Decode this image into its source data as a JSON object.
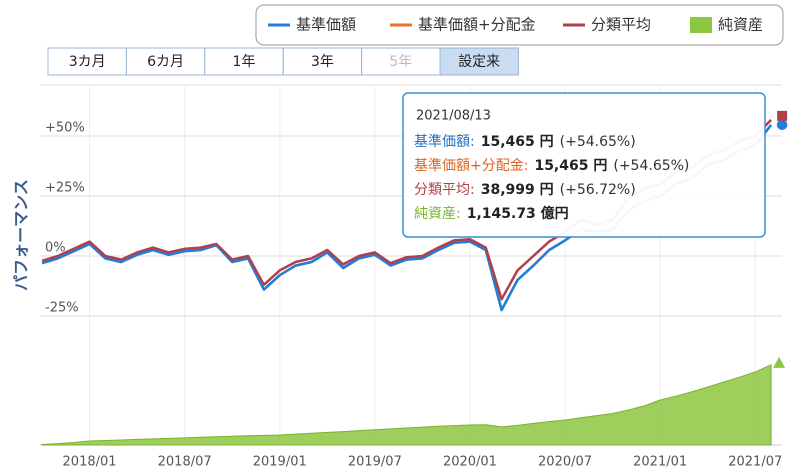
{
  "chart_data": {
    "type": "line",
    "y_label": "パフォーマンス",
    "range_buttons": [
      "3カ月",
      "6カ月",
      "1年",
      "3年",
      "5年",
      "設定来"
    ],
    "selected_range_index": 5,
    "disabled_range_indices": [
      4
    ],
    "x": [
      "2017/10",
      "2017/11",
      "2017/12",
      "2018/01",
      "2018/02",
      "2018/03",
      "2018/04",
      "2018/05",
      "2018/06",
      "2018/07",
      "2018/08",
      "2018/09",
      "2018/10",
      "2018/11",
      "2018/12",
      "2019/01",
      "2019/02",
      "2019/03",
      "2019/04",
      "2019/05",
      "2019/06",
      "2019/07",
      "2019/08",
      "2019/09",
      "2019/10",
      "2019/11",
      "2019/12",
      "2020/01",
      "2020/02",
      "2020/03",
      "2020/04",
      "2020/05",
      "2020/06",
      "2020/07",
      "2020/08",
      "2020/09",
      "2020/10",
      "2020/11",
      "2020/12",
      "2021/01",
      "2021/02",
      "2021/03",
      "2021/04",
      "2021/05",
      "2021/06",
      "2021/07",
      "2021/08"
    ],
    "xticks": [
      "2018/01",
      "2018/07",
      "2019/01",
      "2019/07",
      "2020/01",
      "2020/07",
      "2021/01",
      "2021/07"
    ],
    "ylim": [
      -78.75,
      71.25
    ],
    "yticks": [
      {
        "value": -25,
        "label": "-25%"
      },
      {
        "value": 0,
        "label": "0%"
      },
      {
        "value": 25,
        "label": "+25%"
      },
      {
        "value": 50,
        "label": "+50%"
      }
    ],
    "y2lim": [
      0,
      5150
    ],
    "grid": true,
    "series": [
      {
        "name": "基準価額+分配金",
        "color": "#f07020",
        "values": [
          -3,
          -1,
          2,
          5,
          -1,
          -2.5,
          0.5,
          2.5,
          0.5,
          2,
          2.5,
          4.5,
          -2.5,
          -1,
          -14,
          -8,
          -4,
          -2.5,
          1.5,
          -5,
          -1,
          0.5,
          -4,
          -1.5,
          -1,
          2.5,
          5.5,
          6,
          2.5,
          -22.5,
          -10,
          -4,
          2.5,
          6.5,
          11,
          10,
          11,
          19,
          23,
          25,
          30,
          32.5,
          38,
          40,
          44,
          46,
          54.65
        ]
      },
      {
        "name": "基準価額",
        "color": "#1f7fe0",
        "values": [
          -3,
          -1,
          2,
          5,
          -1,
          -2.5,
          0.5,
          2.5,
          0.5,
          2,
          2.5,
          4.5,
          -2.5,
          -1,
          -14,
          -8,
          -4,
          -2.5,
          1.5,
          -5,
          -1,
          0.5,
          -4,
          -1.5,
          -1,
          2.5,
          5.5,
          6,
          2.5,
          -22.5,
          -10,
          -4,
          2.5,
          6.5,
          11,
          10,
          11,
          19,
          23,
          25,
          30,
          32.5,
          38,
          40,
          44,
          46,
          54.65
        ]
      },
      {
        "name": "分類平均",
        "color": "#b0404a",
        "values": [
          -2,
          0,
          3,
          6,
          0,
          -1.5,
          1.5,
          3.5,
          1.5,
          3,
          3.5,
          5,
          -1.5,
          0,
          -12,
          -6,
          -2.5,
          -1,
          2.5,
          -3.5,
          0,
          1.5,
          -3,
          -0.5,
          0,
          3.5,
          6.5,
          7,
          3.5,
          -18,
          -6,
          0,
          6,
          10,
          15,
          13,
          15,
          24,
          28,
          30,
          35,
          37,
          42,
          44,
          48,
          50,
          56.72
        ]
      },
      {
        "name": "純資産",
        "color": "#8dc63f",
        "type": "area",
        "axis": "y2",
        "values": [
          8,
          20,
          35,
          57,
          65,
          72,
          80,
          88,
          95,
          102,
          110,
          118,
          125,
          133,
          138,
          143,
          155,
          168,
          180,
          192,
          205,
          218,
          230,
          243,
          255,
          268,
          278,
          286,
          290,
          260,
          280,
          310,
          335,
          358,
          390,
          420,
          450,
          500,
          560,
          644,
          700,
          760,
          830,
          900,
          970,
          1045,
          1145.73
        ]
      }
    ],
    "tooltip": {
      "date": "2021/08/13",
      "rows": [
        {
          "label": "基準価額:",
          "value": "15,465 円",
          "change": "(+54.65%)",
          "color": "#1f6fc0"
        },
        {
          "label": "基準価額+分配金:",
          "value": "15,465 円",
          "change": "(+54.65%)",
          "color": "#e0621a"
        },
        {
          "label": "分類平均:",
          "value": "38,999 円",
          "change": "(+56.72%)",
          "color": "#b0404a"
        },
        {
          "label": "純資産:",
          "value": "1,145.73 億円",
          "change": null,
          "color": "#7cb32e"
        }
      ]
    }
  }
}
